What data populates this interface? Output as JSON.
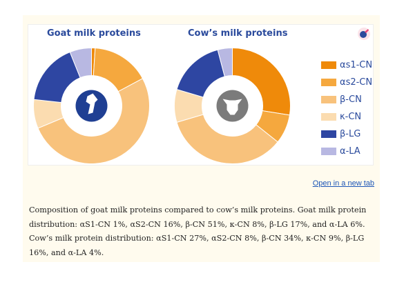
{
  "chart_data": [
    {
      "type": "pie",
      "title": "Goat milk proteins",
      "categories": [
        "αs1-CN",
        "αs2-CN",
        "β-CN",
        "κ-CN",
        "β-LG",
        "α-LA"
      ],
      "values": [
        1,
        16,
        51,
        8,
        17,
        6
      ],
      "colors": [
        "#ef8a0a",
        "#f5a83e",
        "#f8c27c",
        "#fbdcb0",
        "#2e46a2",
        "#b8b8e2"
      ],
      "donut": true,
      "center_icon": "goat-icon"
    },
    {
      "type": "pie",
      "title": "Cow’s milk proteins",
      "categories": [
        "αs1-CN",
        "αs2-CN",
        "β-CN",
        "κ-CN",
        "β-LG",
        "α-LA"
      ],
      "values": [
        27,
        8,
        34,
        9,
        16,
        4
      ],
      "colors": [
        "#ef8a0a",
        "#f5a83e",
        "#f8c27c",
        "#fbdcb0",
        "#2e46a2",
        "#b8b8e2"
      ],
      "donut": true,
      "center_icon": "cow-icon"
    }
  ],
  "legend": {
    "placement": "right",
    "items": [
      {
        "label": "αs1-CN",
        "color": "#ef8a0a"
      },
      {
        "label": "αs2-CN",
        "color": "#f5a83e"
      },
      {
        "label": "β-CN",
        "color": "#f8c27c"
      },
      {
        "label": "κ-CN",
        "color": "#fbdcb0"
      },
      {
        "label": "β-LG",
        "color": "#2e46a2"
      },
      {
        "label": "α-LA",
        "color": "#b8b8e2"
      }
    ]
  },
  "link": {
    "label": "Open in a new tab"
  },
  "caption": "Composition of goat milk proteins compared to cow’s milk proteins. Goat milk protein distribution: αS1-CN 1%, αS2-CN 16%, β-CN 51%, κ-CN 8%, β-LG 17%, and α-LA 6%. Cow’s milk protein distribution: αS1-CN 27%, αS2-CN 8%, β-CN 34%, κ-CN 9%, β-LG 16%, and α-LA 4%.",
  "theme": {
    "card_bg": "#fffbee",
    "title_color": "#2a4a9c",
    "link_color": "#1b55b7",
    "goat_icon_bg": "#1f3f93",
    "cow_icon_bg": "#7b7b7b"
  }
}
